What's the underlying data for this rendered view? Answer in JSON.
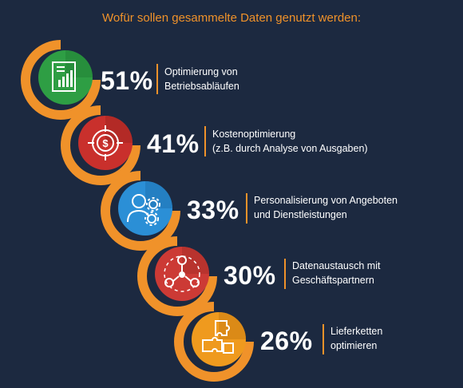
{
  "title": "Wofür sollen gesammelte Daten genutzt werden:",
  "items": [
    {
      "value": "51%",
      "line1": "Optimierung von",
      "line2": "Betriebsabläufen",
      "icon": "chart-document-icon",
      "color": "#2e9e44",
      "dark": "#1f7d33"
    },
    {
      "value": "41%",
      "line1": "Kostenoptimierung",
      "line2": "(z.B. durch Analyse von Ausgaben)",
      "icon": "dollar-target-icon",
      "color": "#c9302c",
      "dark": "#9e2420"
    },
    {
      "value": "33%",
      "line1": "Personalisierung von Angeboten",
      "line2": "und Dienstleistungen",
      "icon": "user-gears-icon",
      "color": "#2b8fd6",
      "dark": "#1d6fae"
    },
    {
      "value": "30%",
      "line1": "Datenaustausch mit",
      "line2": "Geschäftspartnern",
      "icon": "network-people-icon",
      "color": "#cc3a35",
      "dark": "#a32b27"
    },
    {
      "value": "26%",
      "line1": "Lieferketten",
      "line2": "optimieren",
      "icon": "puzzle-icon",
      "color": "#ef9a1e",
      "dark": "#c77a10"
    }
  ],
  "colors": {
    "background": "#1c2940",
    "accent": "#f0922a",
    "text": "#ffffff"
  },
  "chart_data": {
    "type": "bar",
    "title": "Wofür sollen gesammelte Daten genutzt werden:",
    "categories": [
      "Optimierung von Betriebsabläufen",
      "Kostenoptimierung (z.B. durch Analyse von Ausgaben)",
      "Personalisierung von Angeboten und Dienstleistungen",
      "Datenaustausch mit Geschäftspartnern",
      "Lieferketten optimieren"
    ],
    "values": [
      51,
      41,
      33,
      30,
      26
    ],
    "unit": "%"
  }
}
